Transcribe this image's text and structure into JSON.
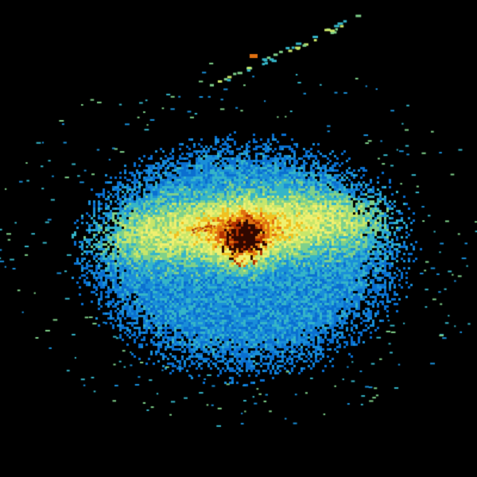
{
  "image": {
    "kind": "radar-reflectivity-sweep",
    "background": "#000000",
    "palette": [
      "#0a6fd0",
      "#1a8fd8",
      "#35b5c8",
      "#7fd08a",
      "#c8e66a",
      "#f0f070",
      "#f0c020",
      "#e07010",
      "#b03000",
      "#300800"
    ]
  }
}
